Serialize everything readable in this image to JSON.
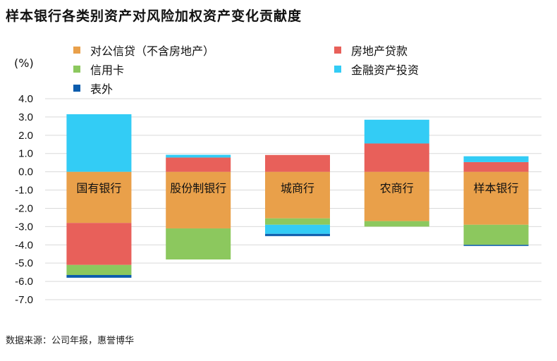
{
  "title": "样本银行各类别资产对风险加权资产变化贡献度",
  "unit_label": "(%)",
  "source": "数据来源：公司年报，惠誉博华",
  "colors": {
    "corporate": "#E9A04A",
    "real_estate": "#E8605A",
    "credit_card": "#8CC85E",
    "financial_assets": "#33CCF5",
    "off_balance": "#0B5CAD"
  },
  "chart_data": {
    "type": "bar",
    "stacked": true,
    "categories": [
      "国有银行",
      "股份制银行",
      "城商行",
      "农商行",
      "样本银行"
    ],
    "ylim": [
      -7,
      4
    ],
    "yticks": [
      4,
      3,
      2,
      1,
      0,
      -1,
      -2,
      -3,
      -4,
      -5,
      -6,
      -7
    ],
    "ytick_labels": [
      "4.0",
      "3.0",
      "2.0",
      "1.0",
      "0.0",
      "-1.0",
      "-2.0",
      "-3.0",
      "-4.0",
      "-5.0",
      "-6.0",
      "-7.0"
    ],
    "grid": true,
    "legend_position": "top",
    "series": [
      {
        "name": "对公信贷（不含房地产）",
        "color_key": "corporate",
        "values": [
          -2.8,
          -3.1,
          -2.55,
          -2.7,
          -2.9
        ]
      },
      {
        "name": "房地产贷款",
        "color_key": "real_estate",
        "values": [
          -2.3,
          0.78,
          0.92,
          1.55,
          0.53
        ]
      },
      {
        "name": "信用卡",
        "color_key": "credit_card",
        "values": [
          -0.55,
          -1.7,
          -0.35,
          -0.3,
          -1.1
        ]
      },
      {
        "name": "金融资产投资",
        "color_key": "financial_assets",
        "values": [
          3.15,
          0.15,
          -0.5,
          1.3,
          0.32
        ]
      },
      {
        "name": "表外",
        "color_key": "off_balance",
        "values": [
          -0.15,
          0,
          -0.12,
          0,
          -0.06
        ]
      }
    ]
  }
}
